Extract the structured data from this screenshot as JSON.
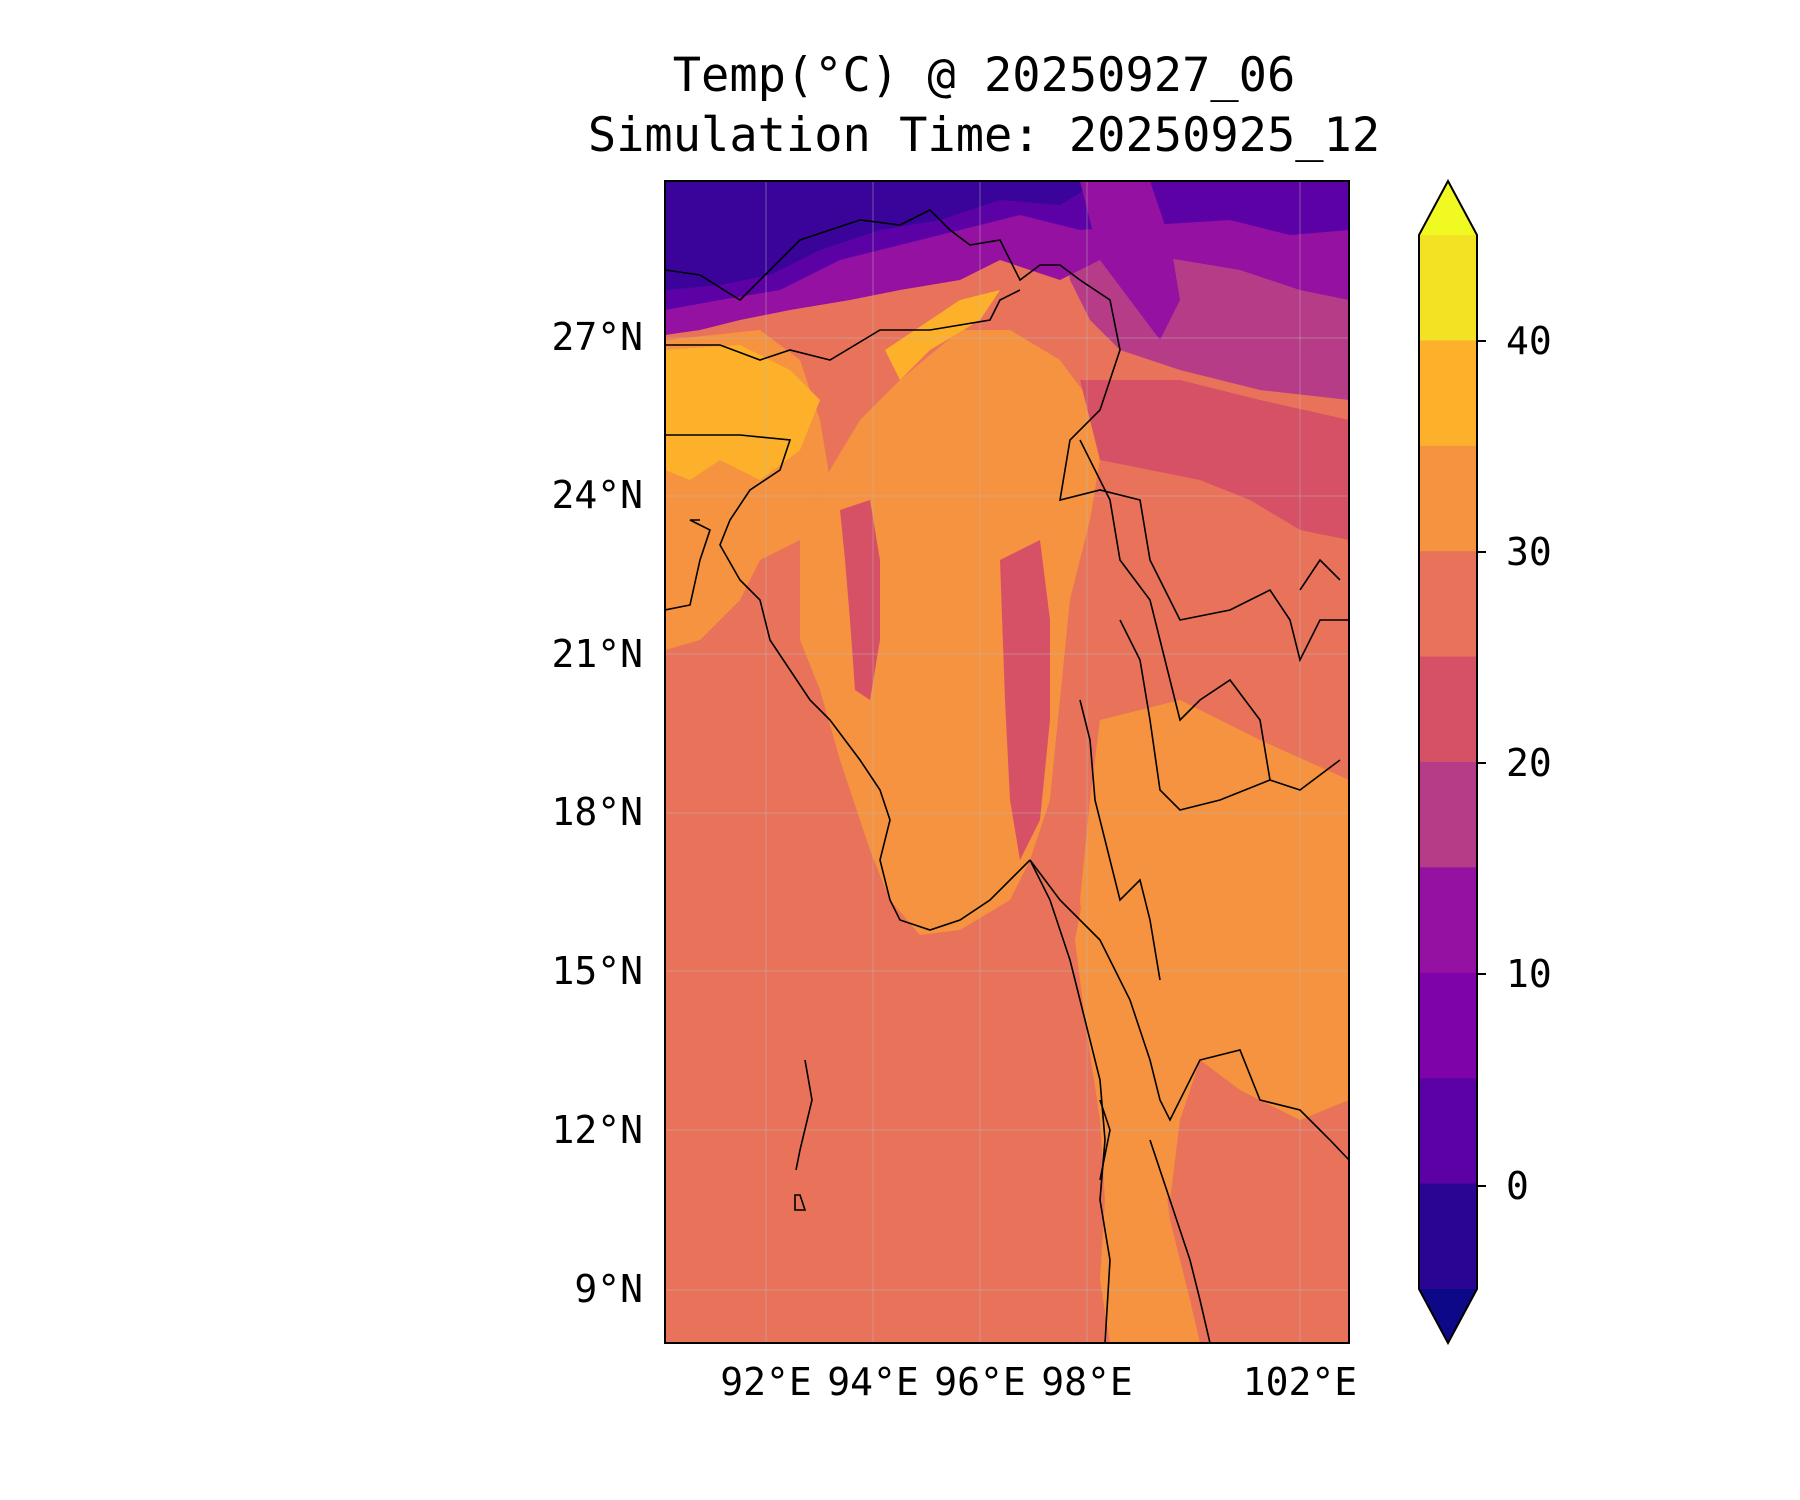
{
  "title": {
    "line1": "Temp(°C) @ 20250927_06",
    "line2": "Simulation Time: 20250925_12"
  },
  "map": {
    "lat_labels": [
      "27°N",
      "24°N",
      "21°N",
      "18°N",
      "15°N",
      "12°N",
      "9°N"
    ],
    "lon_labels": [
      "92°E",
      "94°E",
      "96°E",
      "98°E",
      "102°E"
    ],
    "colors": {
      "ocean": "#e8735a",
      "lowland": "#f59340",
      "hot_plain": "#fdb12b",
      "hill": "#d65166",
      "upland": "#b63c88",
      "high": "#9511a1",
      "peak": "#5c01a6",
      "summit": "#3a049a",
      "coastline": "#000000"
    }
  },
  "colorbar": {
    "tick_labels": [
      "40",
      "30",
      "20",
      "10",
      "0"
    ],
    "bins": [
      {
        "color": "#f0f921",
        "range": "> 45"
      },
      {
        "color": "#f3e224",
        "range": "40 to 45"
      },
      {
        "color": "#fdb12b",
        "range": "35 to 40"
      },
      {
        "color": "#f59340",
        "range": "30 to 35"
      },
      {
        "color": "#e8735a",
        "range": "25 to 30"
      },
      {
        "color": "#d65166",
        "range": "20 to 25"
      },
      {
        "color": "#b63c88",
        "range": "15 to 20"
      },
      {
        "color": "#9511a1",
        "range": "10 to 15"
      },
      {
        "color": "#7e03a8",
        "range": "5 to 10"
      },
      {
        "color": "#5c01a6",
        "range": "0 to 5"
      },
      {
        "color": "#2a0593",
        "range": "-5 to 0"
      },
      {
        "color": "#0d0887",
        "range": "< -5"
      }
    ]
  }
}
